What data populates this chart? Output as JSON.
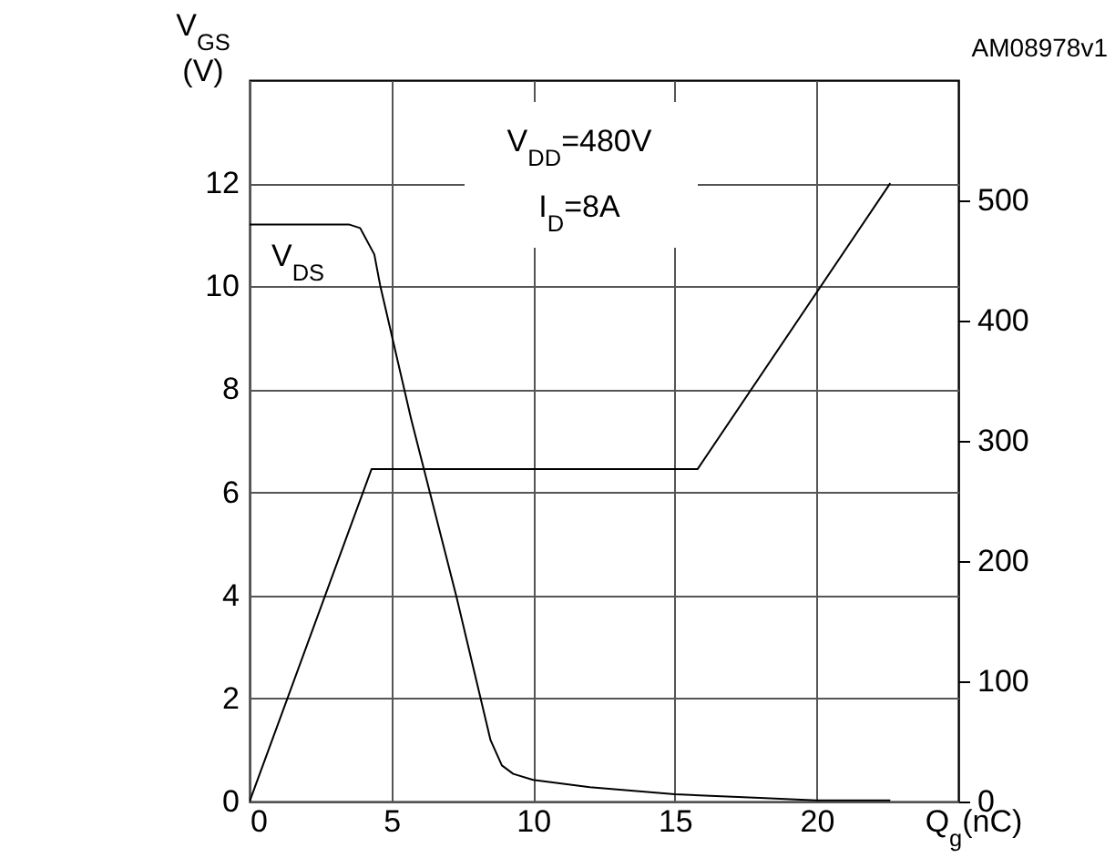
{
  "chart_data": {
    "type": "line",
    "xlabel": "Q$_{g}$(nC)",
    "ylabel": "V$_{GS}$\n(V)",
    "annotations": [
      "V$_{DD}$=480V",
      "I$_{D}$=8A",
      "AM08978v1"
    ],
    "xlim": [
      0,
      25
    ],
    "xticks": [
      0,
      5,
      10,
      15,
      20
    ],
    "ylim": [
      0,
      14
    ],
    "yticks": [
      0,
      2,
      4,
      6,
      8,
      10,
      12
    ],
    "y2lim": [
      0,
      600
    ],
    "y2ticks": [
      0,
      100,
      200,
      300,
      400,
      500
    ],
    "grid": true,
    "series": [
      {
        "color": "#000000",
        "x": [
          0,
          4.3,
          15.8,
          22.6
        ],
        "values": [
          0,
          6.45,
          6.45,
          12
        ]
      },
      {
        "name": "V$_{DS}$",
        "axis": "y2",
        "color": "#000000",
        "x": [
          0,
          3.5,
          3.9,
          4.4,
          4.6,
          5.7,
          7.3,
          8.5,
          8.9,
          9.3,
          10,
          12,
          15,
          18,
          20,
          22.6
        ],
        "values": [
          480,
          480,
          477,
          455,
          430,
          318,
          170,
          51,
          30,
          23,
          18,
          12,
          6,
          3,
          1,
          1
        ]
      }
    ]
  }
}
